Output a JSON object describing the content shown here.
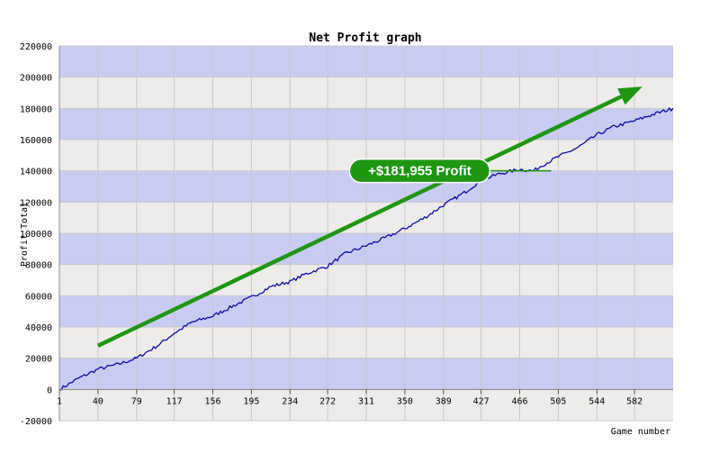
{
  "colors": {
    "band_blue": "#c8ccf3",
    "band_grey": "#eeecea",
    "grid": "#c8c8c8",
    "line": "#0b0ba8",
    "arrow": "#1e9612",
    "badge": "#1e9612"
  },
  "chart_data": {
    "type": "line",
    "title": "Net Profit graph",
    "xlabel": "Game number",
    "ylabel": "Profit Total",
    "ylim": [
      -20000,
      220000
    ],
    "xlim": [
      1,
      621
    ],
    "x_ticks": [
      "1",
      "40",
      "79",
      "117",
      "156",
      "195",
      "234",
      "272",
      "311",
      "350",
      "389",
      "427",
      "466",
      "505",
      "544",
      "582"
    ],
    "y_ticks": [
      "-20000",
      "0",
      "20000",
      "40000",
      "60000",
      "80000",
      "100000",
      "120000",
      "140000",
      "160000",
      "180000",
      "200000",
      "220000"
    ],
    "grid": true,
    "series": [
      {
        "x": [
          1,
          20,
          40,
          60,
          79,
          100,
          117,
          135,
          156,
          175,
          195,
          215,
          234,
          250,
          272,
          290,
          311,
          330,
          350,
          370,
          389,
          410,
          427,
          445,
          466,
          480,
          490,
          505,
          525,
          544,
          560,
          582,
          600,
          621
        ],
        "y": [
          0,
          7000,
          13000,
          16000,
          20000,
          28000,
          36000,
          43000,
          47000,
          53000,
          59000,
          66000,
          69000,
          74000,
          79000,
          87000,
          92000,
          97000,
          103000,
          110000,
          118000,
          126000,
          134000,
          138000,
          141000,
          140000,
          144000,
          149000,
          155000,
          163000,
          168000,
          172000,
          176000,
          180000
        ]
      }
    ],
    "annotations": {
      "badge_text": "+$181,955 Profit",
      "badge_at": [
        365,
        140000
      ],
      "arrow_from": [
        40,
        28000
      ],
      "arrow_to": [
        590,
        194000
      ]
    }
  }
}
